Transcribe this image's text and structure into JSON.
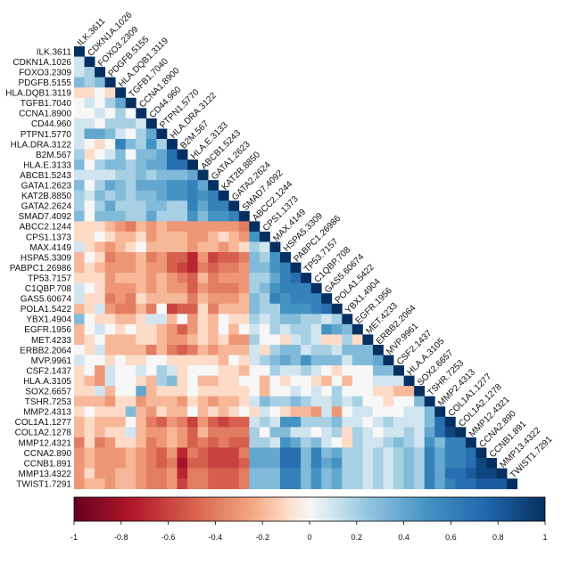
{
  "chart_data": {
    "type": "heatmap",
    "title": "",
    "layout": "lower-triangle",
    "grid": false,
    "legend": "bottom",
    "colormap": {
      "low": "#67001f",
      "mid": "#f7f7f7",
      "high": "#053061"
    },
    "colorbar": {
      "range": [
        -1,
        1
      ],
      "ticks": [
        "-1",
        "-0.8",
        "-0.6",
        "-0.4",
        "-0.2",
        "0",
        "0.2",
        "0.4",
        "0.6",
        "0.8",
        "1"
      ]
    },
    "labels": [
      "ILK.3611",
      "CDKN1A.1026",
      "FOXO3.2309",
      "PDGFB.5155",
      "HLA.DQB1.3119",
      "TGFB1.7040",
      "CCNA1.8900",
      "CD44.960",
      "PTPN1.5770",
      "HLA.DRA.3122",
      "B2M.567",
      "HLA.E.3133",
      "ABCB1.5243",
      "GATA1.2623",
      "KAT2B.8850",
      "GATA2.2624",
      "SMAD7.4092",
      "ABCC2.1244",
      "CPS1.1373",
      "MAX.4149",
      "HSPA5.3309",
      "PABPC1.26986",
      "TP53.7157",
      "C1QBP.708",
      "GAS5.60674",
      "POLA1.5422",
      "YBX1.4904",
      "EGFR.1956",
      "MET.4233",
      "ERBB2.2064",
      "MVP.9961",
      "CSF2.1437",
      "HLA.A.3105",
      "SOX2.6657",
      "TSHR.7253",
      "MMP2.4313",
      "COL1A1.1277",
      "COL1A2.1278",
      "MMP12.4321",
      "CCNA2.890",
      "CCNB1.891",
      "MMP13.4322",
      "TWIST1.7291"
    ],
    "diagonal": 1,
    "lower_values": [
      [],
      [
        0.1
      ],
      [
        0.1,
        0.2
      ],
      [
        0.3,
        0.2,
        0.3
      ],
      [
        -0.1,
        -0.1,
        0,
        -0.1
      ],
      [
        0,
        0.1,
        0,
        0.2,
        0.4
      ],
      [
        0,
        0,
        0.1,
        0,
        0.2,
        0
      ],
      [
        0.1,
        0.1,
        0,
        0.2,
        0.2,
        0.2,
        0.1
      ],
      [
        0.1,
        0.4,
        0.4,
        0.3,
        0.1,
        0,
        0.2,
        0.4
      ],
      [
        0.1,
        0,
        -0.1,
        0,
        0.6,
        0.3,
        0.2,
        0.5,
        0.2
      ],
      [
        0.2,
        -0.1,
        0,
        0.1,
        0.3,
        0,
        0.3,
        0.3,
        0.4,
        0.7
      ],
      [
        0.3,
        0,
        0.2,
        0.3,
        0.3,
        0.2,
        0.3,
        0.4,
        0.4,
        0.7,
        0.7
      ],
      [
        0.1,
        0.1,
        0.1,
        0.1,
        0.2,
        0.2,
        0.3,
        0.2,
        0.3,
        0.3,
        0.3,
        0.4
      ],
      [
        0.3,
        0,
        0.2,
        0.4,
        0.3,
        0.2,
        0.4,
        0.4,
        0.4,
        0.5,
        0.5,
        0.6,
        0.4
      ],
      [
        0.2,
        0.1,
        0.3,
        0.2,
        0.3,
        0.2,
        0.3,
        0.3,
        0.4,
        0.5,
        0.5,
        0.6,
        0.5,
        0.6
      ],
      [
        0.2,
        0,
        0.2,
        0.4,
        0.2,
        0.2,
        0.2,
        0.3,
        0.3,
        0.2,
        0.2,
        0.6,
        0.4,
        0.6,
        0.6
      ],
      [
        0.3,
        0,
        0.3,
        0.3,
        0.3,
        0.2,
        0.2,
        0.4,
        0.2,
        0.2,
        0.2,
        0.5,
        0.3,
        0.5,
        0.5,
        0.6
      ],
      [
        -0.1,
        -0.1,
        -0.1,
        -0.2,
        -0.3,
        -0.4,
        -0.2,
        -0.3,
        -0.2,
        -0.3,
        -0.3,
        -0.3,
        -0.3,
        -0.3,
        -0.3,
        -0.3,
        -0.4
      ],
      [
        -0.1,
        -0.1,
        0,
        -0.1,
        -0.2,
        -0.2,
        -0.1,
        -0.3,
        -0.2,
        -0.2,
        -0.2,
        -0.3,
        -0.3,
        -0.2,
        -0.1,
        -0.2,
        -0.3,
        0.5
      ],
      [
        0.1,
        -0.1,
        -0.2,
        -0.3,
        -0.2,
        -0.1,
        0,
        -0.2,
        -0.2,
        -0.2,
        -0.2,
        -0.3,
        -0.2,
        -0.2,
        -0.3,
        -0.2,
        -0.1,
        0.2,
        0.1
      ],
      [
        -0.2,
        0,
        -0.1,
        -0.4,
        -0.3,
        -0.3,
        -0.2,
        -0.4,
        -0.3,
        -0.5,
        -0.5,
        -0.7,
        -0.3,
        -0.6,
        -0.5,
        -0.5,
        -0.4,
        0.3,
        0.2,
        0.5
      ],
      [
        -0.2,
        -0.1,
        -0.2,
        -0.3,
        -0.3,
        -0.3,
        -0.2,
        -0.3,
        -0.3,
        -0.5,
        -0.6,
        -0.7,
        -0.4,
        -0.5,
        -0.4,
        -0.4,
        -0.3,
        0.3,
        0.3,
        0.5,
        0.6
      ],
      [
        -0.1,
        -0.1,
        -0.1,
        -0.3,
        -0.2,
        -0.2,
        -0.2,
        -0.3,
        -0.2,
        -0.3,
        -0.4,
        -0.5,
        -0.2,
        -0.4,
        -0.3,
        -0.3,
        -0.3,
        0.2,
        0.2,
        0.4,
        0.6,
        0.7
      ],
      [
        0.1,
        0,
        -0.1,
        -0.3,
        -0.3,
        -0.3,
        -0.2,
        -0.3,
        -0.2,
        -0.3,
        -0.3,
        -0.5,
        -0.3,
        -0.4,
        -0.4,
        -0.4,
        -0.3,
        0.2,
        0.3,
        0.5,
        0.6,
        0.6,
        0.6
      ],
      [
        0.1,
        -0.1,
        -0.1,
        -0.4,
        -0.3,
        -0.4,
        -0.1,
        -0.2,
        -0.2,
        -0.2,
        -0.2,
        -0.4,
        -0.2,
        -0.3,
        -0.3,
        -0.3,
        -0.2,
        0.3,
        0.2,
        0.6,
        0.5,
        0.6,
        0.6,
        0.6
      ],
      [
        -0.2,
        -0.1,
        0.1,
        -0.3,
        -0.4,
        -0.4,
        -0.2,
        -0.4,
        0,
        -0.6,
        -0.5,
        -0.5,
        -0.1,
        -0.4,
        -0.2,
        -0.2,
        -0.2,
        0.3,
        0.2,
        0.2,
        0.5,
        0.5,
        0.5,
        0.6,
        0.7
      ],
      [
        0.3,
        0,
        -0.1,
        -0.1,
        -0.2,
        -0.2,
        -0.1,
        0.1,
        0.1,
        -0.2,
        0,
        -0.3,
        -0.1,
        -0.2,
        0,
        -0.1,
        -0.1,
        0.2,
        0.1,
        0.2,
        0.3,
        0.3,
        0.2,
        0.2,
        0.1,
        0.2
      ],
      [
        -0.2,
        0,
        0.1,
        0,
        -0.1,
        0,
        -0.1,
        -0.1,
        -0.2,
        -0.3,
        -0.5,
        -0.3,
        -0.1,
        -0.2,
        0,
        -0.2,
        0,
        0.1,
        0,
        0.2,
        0.1,
        0.2,
        0.2,
        0.1,
        0.5,
        0.4,
        0.3
      ],
      [
        -0.2,
        -0.1,
        0,
        -0.2,
        -0.2,
        -0.2,
        -0.1,
        -0.1,
        -0.2,
        -0.3,
        -0.3,
        -0.2,
        -0.1,
        -0.2,
        -0.1,
        -0.3,
        -0.3,
        0.2,
        0,
        0,
        -0.1,
        0.1,
        0.2,
        0.1,
        -0.1,
        -0.1,
        0.2,
        -0.1
      ],
      [
        0,
        -0.1,
        0.1,
        -0.2,
        -0.2,
        -0.2,
        -0.2,
        -0.4,
        -0.2,
        -0.4,
        -0.5,
        -0.4,
        -0.2,
        -0.3,
        -0.2,
        -0.2,
        -0.2,
        0.1,
        -0.1,
        0.2,
        0.3,
        0.3,
        0.1,
        0.2,
        0.2,
        0.1,
        0.3,
        0.3,
        0.3
      ],
      [
        0.1,
        0,
        0,
        -0.1,
        0,
        -0.1,
        -0.1,
        0,
        0,
        -0.1,
        -0.1,
        -0.1,
        -0.1,
        -0.1,
        -0.2,
        0,
        -0.1,
        0.1,
        0.2,
        0.3,
        0.4,
        0.3,
        0.5,
        0.3,
        0.3,
        0.3,
        0.1,
        0.3,
        0.3,
        0.4
      ],
      [
        -0.1,
        0,
        -0.3,
        0.1,
        0,
        0,
        0.1,
        0,
        0.2,
        0.1,
        -0.1,
        0,
        0,
        0,
        -0.1,
        -0.1,
        -0.2,
        0,
        0,
        0.2,
        0.1,
        0.1,
        0.2,
        0.1,
        0,
        -0.1,
        0,
        0,
        0,
        0.3,
        0.3
      ],
      [
        -0.1,
        -0.2,
        -0.3,
        0.1,
        0,
        0,
        -0.1,
        -0.2,
        0.2,
        0.3,
        -0.1,
        0,
        -0.2,
        -0.2,
        -0.1,
        -0.1,
        0,
        0,
        -0.2,
        0,
        -0.1,
        0,
        0,
        -0.1,
        -0.2,
        0,
        -0.2,
        0,
        0,
        0.1,
        0.1,
        0.1
      ],
      [
        -0.1,
        -0.1,
        0.1,
        -0.2,
        0,
        0,
        0.4,
        -0.2,
        -0.1,
        -0.1,
        -0.1,
        0,
        -0.1,
        -0.1,
        -0.1,
        -0.1,
        -0.1,
        0,
        -0.2,
        0,
        0,
        0.1,
        0,
        0.1,
        0,
        0.2,
        0,
        0,
        0,
        -0.1,
        -0.1,
        -0.2,
        -0.2
      ],
      [
        -0.2,
        -0.2,
        -0.2,
        -0.3,
        -0.1,
        -0.1,
        -0.3,
        -0.2,
        -0.2,
        -0.2,
        -0.3,
        -0.1,
        -0.2,
        -0.3,
        -0.2,
        -0.2,
        -0.1,
        0.1,
        0.3,
        0.2,
        0.2,
        0.3,
        0.2,
        0.1,
        0.1,
        0.2,
        0.1,
        0.2,
        0,
        0,
        -0.1,
        0,
        0,
        0.3
      ],
      [
        -0.1,
        0,
        -0.1,
        -0.1,
        -0.1,
        0.3,
        -0.2,
        -0.3,
        -0.1,
        -0.2,
        -0.2,
        0,
        -0.2,
        -0.1,
        -0.2,
        -0.1,
        0,
        -0.1,
        0.1,
        0,
        -0.1,
        -0.2,
        -0.2,
        -0.3,
        0.1,
        -0.3,
        0,
        0.1,
        0.1,
        0,
        0,
        0,
        0.1,
        0.1,
        0.3
      ],
      [
        -0.2,
        -0.1,
        -0.2,
        -0.2,
        -0.2,
        0,
        -0.2,
        -0.4,
        -0.5,
        -0.3,
        -0.4,
        -0.6,
        -0.3,
        -0.5,
        -0.6,
        -0.5,
        -0.5,
        0.1,
        0.2,
        0.1,
        0.5,
        0.5,
        0.2,
        0.2,
        0.2,
        0.3,
        0.1,
        0.1,
        0,
        0.1,
        0.2,
        0.1,
        0.1,
        0.1,
        0.3,
        0.7
      ],
      [
        -0.2,
        -0.1,
        -0.2,
        -0.1,
        -0.1,
        0.1,
        -0.2,
        -0.3,
        -0.3,
        -0.2,
        -0.3,
        -0.5,
        -0.2,
        -0.4,
        -0.4,
        -0.4,
        -0.4,
        0.2,
        0,
        0.3,
        0.3,
        0.1,
        0.1,
        0,
        0.1,
        0.2,
        -0.1,
        0.2,
        0.1,
        0,
        0.1,
        0.1,
        0.2,
        0.1,
        0.4,
        0.7,
        0.9
      ],
      [
        -0.4,
        -0.1,
        -0.4,
        -0.3,
        -0.1,
        -0.1,
        -0.2,
        -0.4,
        -0.3,
        -0.2,
        -0.3,
        -0.5,
        -0.4,
        -0.5,
        -0.4,
        -0.5,
        -0.5,
        0.2,
        0.2,
        0.1,
        0.5,
        0.4,
        0.2,
        0.3,
        0.1,
        0,
        -0.1,
        0.2,
        0.1,
        0.1,
        0.2,
        0.3,
        0.2,
        0.1,
        0.5,
        0.3,
        0.6,
        0.6
      ],
      [
        -0.3,
        -0.2,
        -0.3,
        -0.3,
        -0.3,
        -0.2,
        -0.3,
        -0.4,
        -0.5,
        -0.3,
        -0.7,
        -0.4,
        -0.5,
        -0.6,
        -0.6,
        -0.6,
        -0.4,
        0.4,
        0.4,
        0.4,
        0.7,
        0.7,
        0.3,
        0.6,
        0.3,
        0.4,
        0.2,
        0.2,
        0.1,
        0.2,
        0.1,
        0.2,
        0.3,
        0.2,
        0.6,
        0.4,
        0.6,
        0.6,
        0.7
      ],
      [
        -0.3,
        -0.2,
        -0.3,
        -0.3,
        -0.3,
        -0.2,
        -0.3,
        -0.4,
        -0.5,
        -0.4,
        -0.8,
        -0.5,
        -0.5,
        -0.6,
        -0.6,
        -0.6,
        -0.5,
        0.4,
        0.4,
        0.4,
        0.7,
        0.7,
        0.3,
        0.6,
        0.4,
        0.5,
        0.2,
        0.2,
        0.1,
        0.2,
        0.1,
        0.2,
        0.3,
        0.2,
        0.6,
        0.4,
        0.6,
        0.6,
        0.7,
        0.9
      ],
      [
        -0.3,
        -0.1,
        -0.3,
        -0.3,
        -0.2,
        -0.2,
        -0.3,
        -0.4,
        -0.4,
        -0.3,
        -0.7,
        -0.4,
        -0.4,
        -0.5,
        -0.5,
        -0.5,
        -0.4,
        0.3,
        0.3,
        0.3,
        0.6,
        0.6,
        0.3,
        0.5,
        0.3,
        0.4,
        0.2,
        0.2,
        0.1,
        0.2,
        0.1,
        0.2,
        0.3,
        0.2,
        0.6,
        0.4,
        0.7,
        0.7,
        0.8,
        0.9,
        0.9
      ],
      [
        -0.3,
        -0.2,
        -0.2,
        -0.3,
        -0.2,
        -0.2,
        -0.3,
        -0.4,
        -0.4,
        -0.3,
        -0.6,
        -0.4,
        -0.4,
        -0.5,
        -0.5,
        -0.5,
        -0.4,
        0.3,
        0.3,
        0.3,
        0.6,
        0.6,
        0.3,
        0.5,
        0.3,
        0.4,
        0.2,
        0.2,
        0.1,
        0.2,
        0.1,
        0.2,
        0.3,
        0.2,
        0.6,
        0.4,
        0.6,
        0.7,
        0.7,
        0.8,
        0.8,
        0.8
      ]
    ]
  }
}
